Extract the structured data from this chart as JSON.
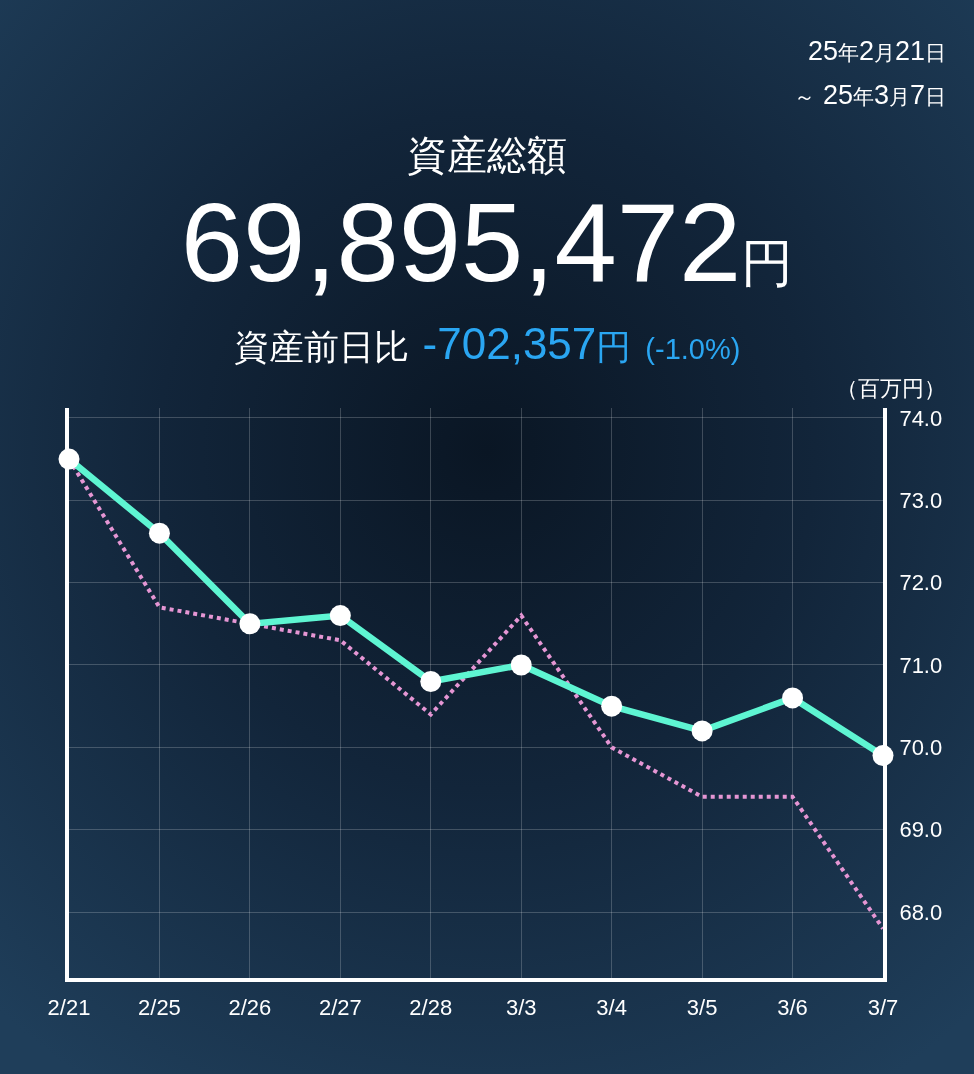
{
  "chart_data": {
    "type": "line",
    "title": "資産総額",
    "subtitle": "69,895,472円",
    "ylabel": "（百万円）",
    "annotations": [
      "25年2月21日",
      "～ 25年3月7日",
      "資産前日比",
      "-702,357円",
      "(-1.0%)"
    ],
    "categories": [
      "2/21",
      "2/25",
      "2/26",
      "2/27",
      "2/28",
      "3/3",
      "3/4",
      "3/5",
      "3/6",
      "3/7"
    ],
    "series": [
      {
        "color": "#5ef5d2",
        "marker": "circle",
        "line_style": "solid",
        "values": [
          73.5,
          72.6,
          71.5,
          71.6,
          70.8,
          71.0,
          70.5,
          70.2,
          70.6,
          69.9
        ]
      },
      {
        "color": "#e596d4",
        "marker": "none",
        "line_style": "dotted",
        "values": [
          73.5,
          71.7,
          null,
          71.3,
          70.4,
          71.6,
          70.0,
          69.4,
          69.4,
          67.8
        ]
      }
    ],
    "ylim": [
      67.2,
      74.12
    ],
    "yticks": [
      {
        "value": 68,
        "label": "68.0"
      },
      {
        "value": 69,
        "label": "69.0"
      },
      {
        "value": 70,
        "label": "70.0"
      },
      {
        "value": 71,
        "label": "71.0"
      },
      {
        "value": 72,
        "label": "72.0"
      },
      {
        "value": 73,
        "label": "73.0"
      },
      {
        "value": 74,
        "label": "74.0"
      }
    ],
    "grid": true
  }
}
